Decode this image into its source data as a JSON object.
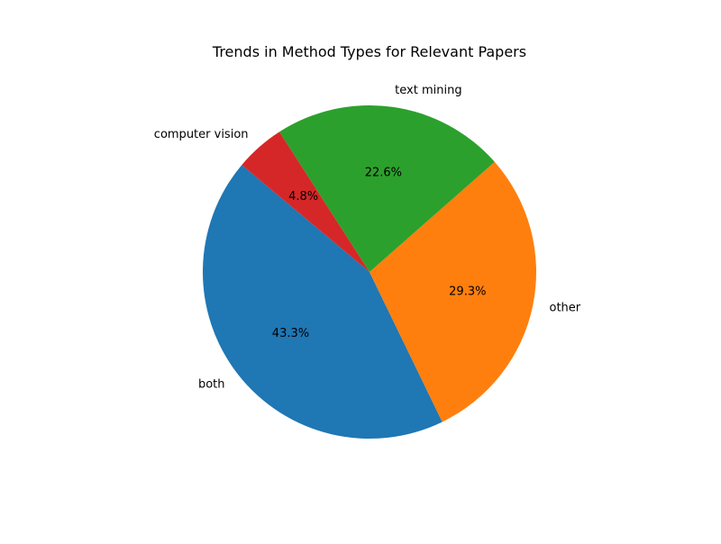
{
  "chart_data": {
    "type": "pie",
    "title": "Trends in Method Types for Relevant Papers",
    "categories": [
      "both",
      "other",
      "text mining",
      "computer vision"
    ],
    "values": [
      43.3,
      29.3,
      22.6,
      4.8
    ],
    "value_labels": [
      "43.3%",
      "29.3%",
      "22.6%",
      "4.8%"
    ],
    "colors": [
      "#1f77b4",
      "#ff7f0e",
      "#2ca02c",
      "#d62728"
    ],
    "legend": "none"
  }
}
